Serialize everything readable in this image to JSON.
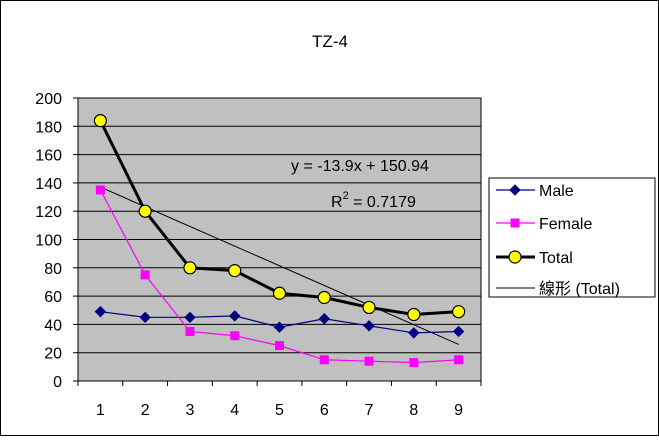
{
  "chart_data": {
    "type": "line",
    "title": "TZ-4",
    "x": [
      1,
      2,
      3,
      4,
      5,
      6,
      7,
      8,
      9
    ],
    "xlabel": "",
    "ylabel": "",
    "xticks": [
      "1",
      "2",
      "3",
      "4",
      "5",
      "6",
      "7",
      "8",
      "9"
    ],
    "yticks": [
      "0",
      "20",
      "40",
      "60",
      "80",
      "100",
      "120",
      "140",
      "160",
      "180",
      "200"
    ],
    "ylim": [
      0,
      200
    ],
    "grid": true,
    "legend_position": "right",
    "series": [
      {
        "name": "Male",
        "values": [
          49,
          45,
          45,
          46,
          38,
          44,
          39,
          34,
          35
        ],
        "color": "#000080",
        "marker": "diamond"
      },
      {
        "name": "Female",
        "values": [
          135,
          75,
          35,
          32,
          25,
          15,
          14,
          13,
          15
        ],
        "color": "#ff00ff",
        "marker": "square"
      },
      {
        "name": "Total",
        "values": [
          184,
          120,
          80,
          78,
          62,
          59,
          52,
          47,
          49
        ],
        "color": "#000000",
        "marker": "circle",
        "marker_fill": "#ffff00"
      }
    ],
    "trendline": {
      "name": "線形 (Total)",
      "slope": -13.9,
      "intercept": 150.94,
      "r2": 0.7179,
      "equation_label": "y = -13.9x + 150.94",
      "r2_label_prefix": "R",
      "r2_label_sup": "2",
      "r2_label_suffix": " = 0.7179",
      "color": "#000000"
    },
    "plot_background": "#c0c0c0"
  }
}
